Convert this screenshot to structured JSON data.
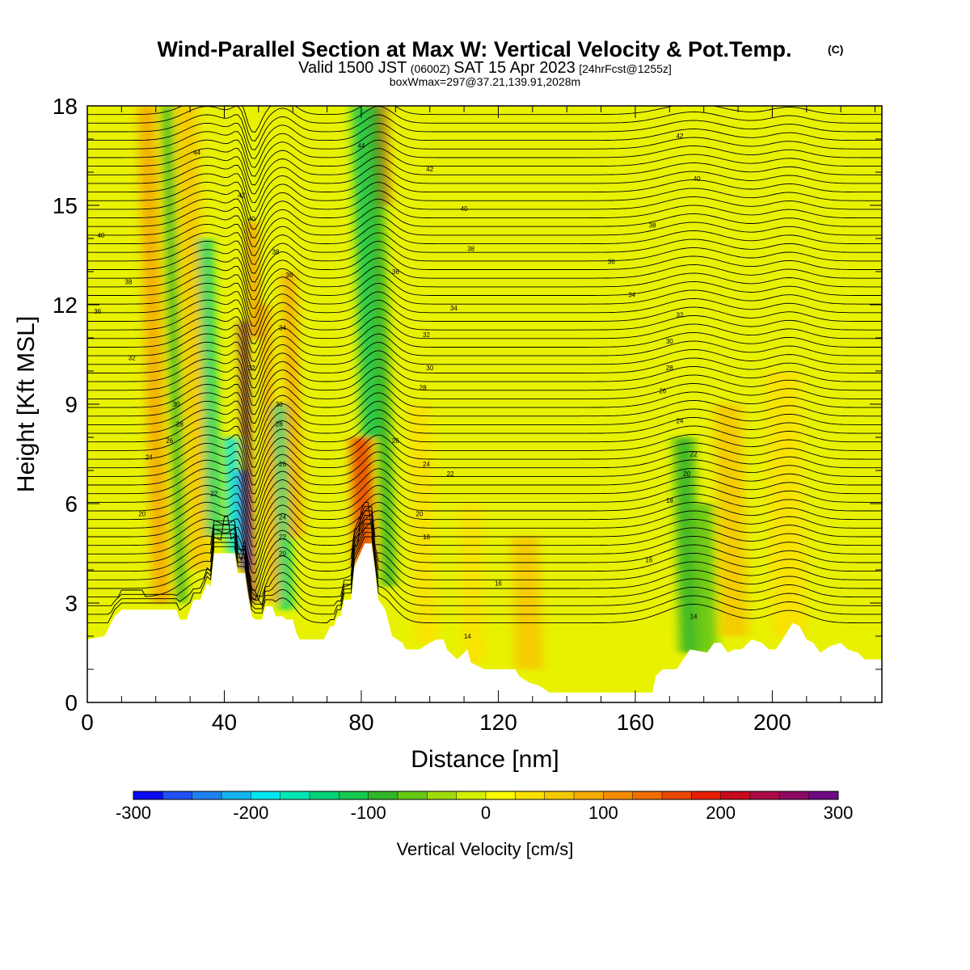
{
  "title": {
    "main": "Wind-Parallel Section at Max W: Vertical Velocity & Pot.Temp.",
    "tag": "(C)",
    "valid_prefix": "Valid 1500 JST",
    "valid_utc": "(0600Z)",
    "valid_date": "SAT 15 Apr 2023",
    "forecast": "[24hrFcst@1255z]",
    "box_info": "boxWmax=297@37.21,139.91,2028m"
  },
  "chart_data": {
    "type": "heatmap",
    "description_fields": "vertical velocity (filled) with potential temperature contours",
    "xlabel": "Distance [nm]",
    "ylabel": "Height [Kft MSL]",
    "xlim": [
      0,
      232
    ],
    "ylim": [
      0,
      18
    ],
    "x_ticks": [
      0,
      40,
      80,
      120,
      160,
      200
    ],
    "y_ticks": [
      0,
      3,
      6,
      9,
      12,
      15,
      18
    ],
    "colorbar": {
      "label": "Vertical Velocity [cm/s]",
      "range": [
        -300,
        300
      ],
      "tick_values": [
        -300,
        -200,
        -100,
        0,
        100,
        200,
        300
      ],
      "tick_labels": [
        "-300",
        "-200",
        "-100",
        "0",
        "100",
        "200",
        "300"
      ],
      "colors": [
        "#0a0af0",
        "#1e50f5",
        "#1e82f0",
        "#14b4f0",
        "#00e6f0",
        "#00e6b4",
        "#00d278",
        "#14c850",
        "#32b428",
        "#64c814",
        "#a0dc0a",
        "#d2f000",
        "#fafa00",
        "#fae100",
        "#f5c800",
        "#f5aa00",
        "#f58c00",
        "#f06e00",
        "#eb4600",
        "#e61e00",
        "#c80a1e",
        "#aa0a46",
        "#8c0a64",
        "#6e0a82"
      ]
    },
    "terrain_kft": [
      [
        0,
        1.9
      ],
      [
        5,
        2.0
      ],
      [
        8,
        2.6
      ],
      [
        10,
        2.8
      ],
      [
        26,
        2.8
      ],
      [
        27,
        2.5
      ],
      [
        29,
        2.5
      ],
      [
        31,
        3.1
      ],
      [
        33,
        3.1
      ],
      [
        35,
        3.6
      ],
      [
        36,
        3.5
      ],
      [
        37,
        4.5
      ],
      [
        43,
        4.5
      ],
      [
        44,
        3.9
      ],
      [
        46,
        3.9
      ],
      [
        47,
        3.2
      ],
      [
        48,
        2.6
      ],
      [
        49,
        2.5
      ],
      [
        51,
        2.5
      ],
      [
        52,
        2.9
      ],
      [
        54,
        2.9
      ],
      [
        55,
        2.6
      ],
      [
        57,
        2.6
      ],
      [
        58,
        2.5
      ],
      [
        60,
        2.5
      ],
      [
        61,
        2.1
      ],
      [
        62,
        1.9
      ],
      [
        69,
        1.9
      ],
      [
        71,
        2.3
      ],
      [
        72,
        2.3
      ],
      [
        73,
        2.6
      ],
      [
        74,
        2.6
      ],
      [
        75,
        3.1
      ],
      [
        77,
        3.1
      ],
      [
        78,
        4.1
      ],
      [
        81,
        4.8
      ],
      [
        83,
        4.8
      ],
      [
        84,
        4.0
      ],
      [
        85,
        3.1
      ],
      [
        87,
        2.8
      ],
      [
        89,
        2.0
      ],
      [
        92,
        1.8
      ],
      [
        93,
        1.6
      ],
      [
        97,
        1.6
      ],
      [
        100,
        1.8
      ],
      [
        102,
        1.9
      ],
      [
        104,
        1.9
      ],
      [
        105,
        1.6
      ],
      [
        106,
        1.5
      ],
      [
        108,
        1.3
      ],
      [
        110,
        1.5
      ],
      [
        111,
        1.6
      ],
      [
        112,
        1.2
      ],
      [
        116,
        1.0
      ],
      [
        125,
        1.0
      ],
      [
        126,
        0.8
      ],
      [
        129,
        0.6
      ],
      [
        132,
        0.5
      ],
      [
        135,
        0.3
      ],
      [
        165,
        0.3
      ],
      [
        166,
        0.8
      ],
      [
        168,
        1.0
      ],
      [
        172,
        1.0
      ],
      [
        174,
        1.3
      ],
      [
        176,
        1.6
      ],
      [
        181,
        1.5
      ],
      [
        183,
        1.8
      ],
      [
        185,
        1.8
      ],
      [
        187,
        1.5
      ],
      [
        189,
        1.6
      ],
      [
        191,
        1.6
      ],
      [
        194,
        1.9
      ],
      [
        197,
        1.8
      ],
      [
        199,
        1.6
      ],
      [
        201,
        1.6
      ],
      [
        203,
        1.9
      ],
      [
        206,
        2.4
      ],
      [
        208,
        2.3
      ],
      [
        210,
        1.9
      ],
      [
        212,
        1.8
      ],
      [
        214,
        1.5
      ],
      [
        217,
        1.7
      ],
      [
        220,
        1.8
      ],
      [
        222,
        1.6
      ],
      [
        225,
        1.5
      ],
      [
        227,
        1.3
      ],
      [
        232,
        1.3
      ]
    ],
    "velocity_bands": [
      {
        "x": 19,
        "w": 5,
        "v": 90,
        "base": 3,
        "top": 18
      },
      {
        "x": 26,
        "w": 3,
        "v": -90,
        "base": 3,
        "top": 18
      },
      {
        "x": 30,
        "w": 6,
        "v": 70,
        "base": 4,
        "top": 18
      },
      {
        "x": 35,
        "w": 4,
        "v": -130,
        "base": 5,
        "top": 14
      },
      {
        "x": 41,
        "w": 4,
        "v": -200,
        "base": 4.5,
        "top": 8
      },
      {
        "x": 45,
        "w": 2,
        "v": -280,
        "base": 4,
        "top": 7
      },
      {
        "x": 47,
        "w": 2,
        "v": 270,
        "base": 3,
        "top": 11.5
      },
      {
        "x": 48,
        "w": 2,
        "v": 130,
        "base": 11,
        "top": 14.5
      },
      {
        "x": 53,
        "w": 3,
        "v": 90,
        "base": 3,
        "top": 12
      },
      {
        "x": 56,
        "w": 4,
        "v": -140,
        "base": 2.8,
        "top": 9
      },
      {
        "x": 59,
        "w": 4,
        "v": 80,
        "base": 5,
        "top": 13
      },
      {
        "x": 78,
        "w": 6,
        "v": 150,
        "base": 4,
        "top": 8
      },
      {
        "x": 80,
        "w": 5,
        "v": -110,
        "base": 8,
        "top": 18
      },
      {
        "x": 84,
        "w": 4,
        "v": 200,
        "base": 15,
        "top": 18
      },
      {
        "x": 86,
        "w": 4,
        "v": -100,
        "base": 3.5,
        "top": 18
      },
      {
        "x": 96,
        "w": 6,
        "v": 30,
        "base": 1.8,
        "top": 9
      },
      {
        "x": 110,
        "w": 6,
        "v": 40,
        "base": 1.2,
        "top": 6
      },
      {
        "x": 125,
        "w": 8,
        "v": 60,
        "base": 1.0,
        "top": 5
      },
      {
        "x": 173,
        "w": 6,
        "v": -80,
        "base": 1.5,
        "top": 8
      },
      {
        "x": 178,
        "w": 6,
        "v": -60,
        "base": 1.5,
        "top": 6
      },
      {
        "x": 185,
        "w": 8,
        "v": 50,
        "base": 2,
        "top": 9
      },
      {
        "x": 200,
        "w": 10,
        "v": 30,
        "base": 2,
        "top": 10
      }
    ],
    "contour_labels": [
      {
        "x": 32,
        "y": 16.6,
        "t": "44"
      },
      {
        "x": 4,
        "y": 14.1,
        "t": "40"
      },
      {
        "x": 12,
        "y": 12.7,
        "t": "38"
      },
      {
        "x": 3,
        "y": 11.8,
        "t": "36"
      },
      {
        "x": 13,
        "y": 10.4,
        "t": "32"
      },
      {
        "x": 26,
        "y": 9.0,
        "t": "30"
      },
      {
        "x": 27,
        "y": 8.4,
        "t": "28"
      },
      {
        "x": 24,
        "y": 7.9,
        "t": "26"
      },
      {
        "x": 18,
        "y": 7.4,
        "t": "24"
      },
      {
        "x": 16,
        "y": 5.7,
        "t": "20"
      },
      {
        "x": 37,
        "y": 6.3,
        "t": "22"
      },
      {
        "x": 45,
        "y": 15.3,
        "t": "42"
      },
      {
        "x": 48,
        "y": 14.6,
        "t": "40"
      },
      {
        "x": 55,
        "y": 13.6,
        "t": "38"
      },
      {
        "x": 59,
        "y": 12.9,
        "t": "36"
      },
      {
        "x": 57,
        "y": 11.3,
        "t": "34"
      },
      {
        "x": 48,
        "y": 10.1,
        "t": "32"
      },
      {
        "x": 56,
        "y": 9.0,
        "t": "30"
      },
      {
        "x": 56,
        "y": 8.4,
        "t": "28"
      },
      {
        "x": 57,
        "y": 7.2,
        "t": "26"
      },
      {
        "x": 57,
        "y": 5.6,
        "t": "24"
      },
      {
        "x": 57,
        "y": 5.0,
        "t": "22"
      },
      {
        "x": 57,
        "y": 4.5,
        "t": "20"
      },
      {
        "x": 80,
        "y": 16.8,
        "t": "44"
      },
      {
        "x": 100,
        "y": 16.1,
        "t": "42"
      },
      {
        "x": 110,
        "y": 14.9,
        "t": "40"
      },
      {
        "x": 112,
        "y": 13.7,
        "t": "38"
      },
      {
        "x": 90,
        "y": 13.0,
        "t": "36"
      },
      {
        "x": 107,
        "y": 11.9,
        "t": "34"
      },
      {
        "x": 99,
        "y": 11.1,
        "t": "32"
      },
      {
        "x": 100,
        "y": 10.1,
        "t": "30"
      },
      {
        "x": 98,
        "y": 9.5,
        "t": "28"
      },
      {
        "x": 90,
        "y": 7.9,
        "t": "26"
      },
      {
        "x": 99,
        "y": 7.2,
        "t": "24"
      },
      {
        "x": 106,
        "y": 6.9,
        "t": "22"
      },
      {
        "x": 97,
        "y": 5.7,
        "t": "20"
      },
      {
        "x": 99,
        "y": 5.0,
        "t": "18"
      },
      {
        "x": 120,
        "y": 3.6,
        "t": "16"
      },
      {
        "x": 111,
        "y": 2.0,
        "t": "14"
      },
      {
        "x": 173,
        "y": 17.1,
        "t": "42"
      },
      {
        "x": 178,
        "y": 15.8,
        "t": "40"
      },
      {
        "x": 165,
        "y": 14.4,
        "t": "38"
      },
      {
        "x": 153,
        "y": 13.3,
        "t": "36"
      },
      {
        "x": 159,
        "y": 12.3,
        "t": "34"
      },
      {
        "x": 173,
        "y": 11.7,
        "t": "32"
      },
      {
        "x": 170,
        "y": 10.9,
        "t": "30"
      },
      {
        "x": 170,
        "y": 10.1,
        "t": "28"
      },
      {
        "x": 168,
        "y": 9.4,
        "t": "26"
      },
      {
        "x": 173,
        "y": 8.5,
        "t": "24"
      },
      {
        "x": 177,
        "y": 7.5,
        "t": "22"
      },
      {
        "x": 175,
        "y": 6.9,
        "t": "20"
      },
      {
        "x": 170,
        "y": 6.1,
        "t": "18"
      },
      {
        "x": 164,
        "y": 4.3,
        "t": "16"
      },
      {
        "x": 177,
        "y": 2.6,
        "t": "14"
      }
    ]
  }
}
